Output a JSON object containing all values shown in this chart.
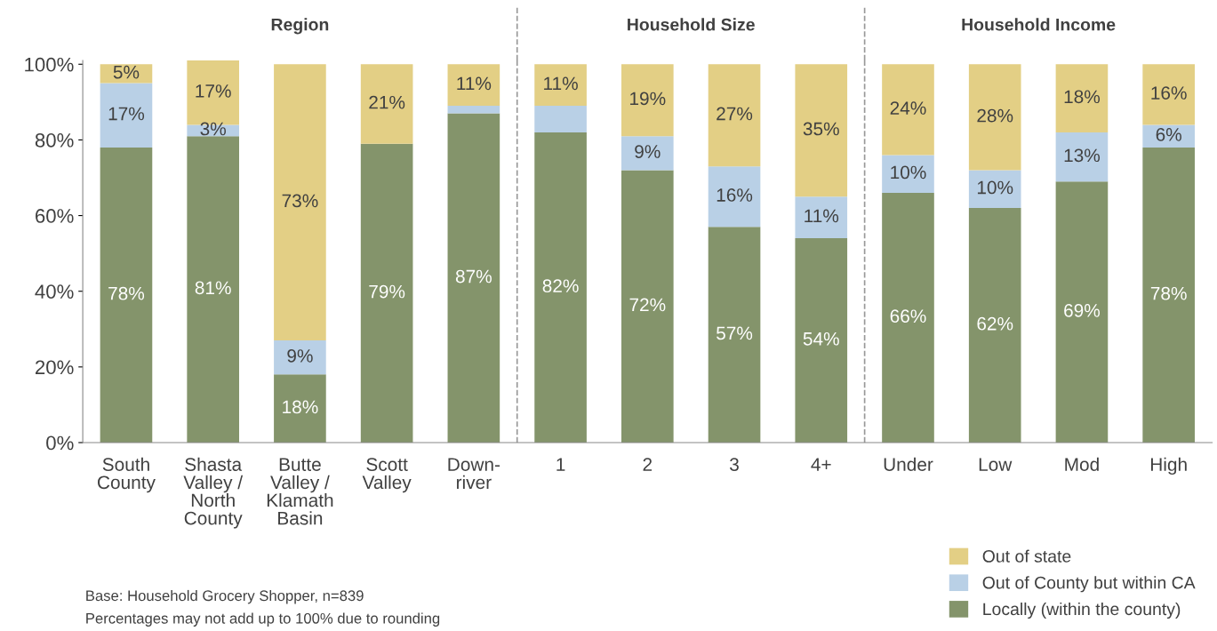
{
  "chart_data": {
    "type": "bar",
    "stacked": true,
    "categories": [
      "South\nCounty",
      "Shasta\nValley /\nNorth\nCounty",
      "Butte\nValley /\nKlamath\nBasin",
      "Scott\nValley",
      "Down-\nriver",
      "1",
      "2",
      "3",
      "4+",
      "Under",
      "Low",
      "Mod",
      "High"
    ],
    "series": [
      {
        "name": "Locally (within the county)",
        "color": "#84946b",
        "values": [
          78,
          81,
          18,
          79,
          87,
          82,
          72,
          57,
          54,
          66,
          62,
          69,
          78
        ],
        "value_labels": [
          "78%",
          "81%",
          "18%",
          "79%",
          "87%",
          "82%",
          "72%",
          "57%",
          "54%",
          "66%",
          "62%",
          "69%",
          "78%"
        ]
      },
      {
        "name": "Out of County but within CA",
        "color": "#b9d0e6",
        "values": [
          17,
          3,
          9,
          null,
          2,
          7,
          9,
          16,
          11,
          10,
          10,
          13,
          6
        ],
        "value_labels": [
          "17%",
          "3%",
          "9%",
          null,
          null,
          null,
          "9%",
          "16%",
          "11%",
          "10%",
          "10%",
          "13%",
          "6%"
        ]
      },
      {
        "name": "Out of state",
        "color": "#e3cf85",
        "values": [
          5,
          17,
          73,
          21,
          11,
          11,
          19,
          27,
          35,
          24,
          28,
          18,
          16
        ],
        "value_labels": [
          "5%",
          "17%",
          "73%",
          "21%",
          "11%",
          "11%",
          "19%",
          "27%",
          "35%",
          "24%",
          "28%",
          "18%",
          "16%"
        ]
      }
    ],
    "ylim": [
      0,
      101
    ],
    "yticks": [
      {
        "value": 0,
        "label": "0%"
      },
      {
        "value": 20,
        "label": "20%"
      },
      {
        "value": 40,
        "label": "40%"
      },
      {
        "value": 60,
        "label": "60%"
      },
      {
        "value": 80,
        "label": "80%"
      },
      {
        "value": 100,
        "label": "100%"
      }
    ],
    "annotations": [
      "Region",
      "Household Size",
      "Household Income",
      "Base: Household Grocery Shopper, n=839",
      "Percentages may not add up to 100% due to rounding"
    ],
    "legend": "bottom right",
    "grid": false
  }
}
